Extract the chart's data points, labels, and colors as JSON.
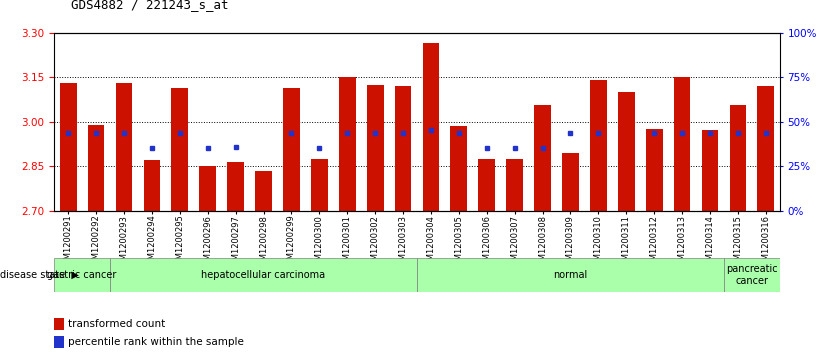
{
  "title": "GDS4882 / 221243_s_at",
  "samples": [
    "GSM1200291",
    "GSM1200292",
    "GSM1200293",
    "GSM1200294",
    "GSM1200295",
    "GSM1200296",
    "GSM1200297",
    "GSM1200298",
    "GSM1200299",
    "GSM1200300",
    "GSM1200301",
    "GSM1200302",
    "GSM1200303",
    "GSM1200304",
    "GSM1200305",
    "GSM1200306",
    "GSM1200307",
    "GSM1200308",
    "GSM1200309",
    "GSM1200310",
    "GSM1200311",
    "GSM1200312",
    "GSM1200313",
    "GSM1200314",
    "GSM1200315",
    "GSM1200316"
  ],
  "bar_values": [
    3.13,
    2.99,
    3.13,
    2.87,
    3.115,
    2.85,
    2.865,
    2.835,
    3.115,
    2.875,
    3.15,
    3.125,
    3.12,
    3.265,
    2.985,
    2.875,
    2.875,
    3.055,
    2.895,
    3.14,
    3.1,
    2.975,
    3.15,
    2.97,
    3.055,
    3.12
  ],
  "percentile_values": [
    2.96,
    2.963,
    2.963,
    2.91,
    2.963,
    2.91,
    2.913,
    null,
    2.963,
    2.91,
    2.963,
    2.963,
    2.963,
    2.973,
    2.963,
    2.91,
    2.91,
    2.91,
    2.963,
    2.963,
    null,
    2.963,
    2.963,
    2.963,
    2.963,
    2.963
  ],
  "ymin": 2.7,
  "ymax": 3.3,
  "yticks": [
    2.7,
    2.85,
    3.0,
    3.15,
    3.3
  ],
  "right_ytick_pcts": [
    0,
    25,
    50,
    75,
    100
  ],
  "bar_color": "#cc1100",
  "dot_color": "#2233cc",
  "plot_bg": "#ffffff",
  "disease_groups": [
    {
      "label": "gastric cancer",
      "start": 0,
      "end": 2
    },
    {
      "label": "hepatocellular carcinoma",
      "start": 2,
      "end": 13
    },
    {
      "label": "normal",
      "start": 13,
      "end": 24
    },
    {
      "label": "pancreatic\ncancer",
      "start": 24,
      "end": 26
    }
  ]
}
